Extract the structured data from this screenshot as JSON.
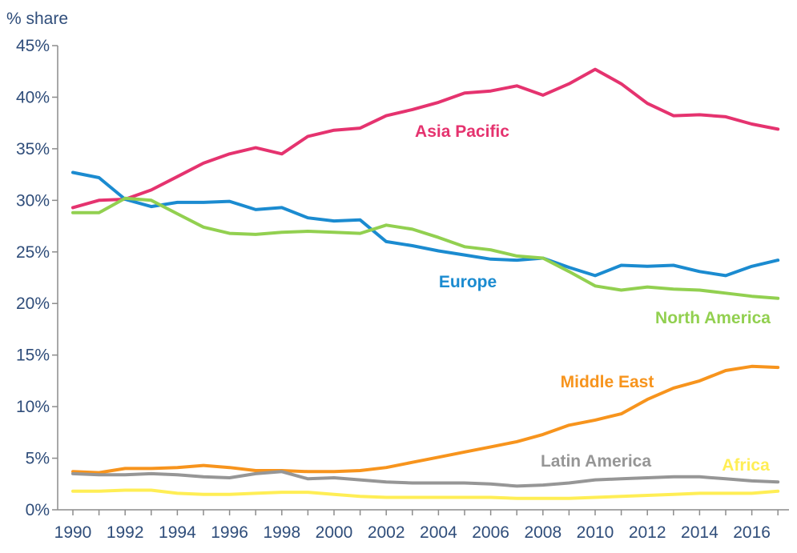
{
  "chart_data": {
    "type": "line",
    "ylabel": "% share",
    "xlabel": "",
    "ylim": [
      0,
      45
    ],
    "xlim": [
      1990,
      2017
    ],
    "grid": false,
    "legend": "inline labels",
    "x": [
      1990,
      1991,
      1992,
      1993,
      1994,
      1995,
      1996,
      1997,
      1998,
      1999,
      2000,
      2001,
      2002,
      2003,
      2004,
      2005,
      2006,
      2007,
      2008,
      2009,
      2010,
      2011,
      2012,
      2013,
      2014,
      2015,
      2016,
      2017
    ],
    "x_ticks": [
      "1990",
      "1992",
      "1994",
      "1996",
      "1998",
      "2000",
      "2002",
      "2004",
      "2006",
      "2008",
      "2010",
      "2012",
      "2014",
      "2016"
    ],
    "y_ticks": [
      "0%",
      "5%",
      "10%",
      "15%",
      "20%",
      "25%",
      "30%",
      "35%",
      "40%",
      "45%"
    ],
    "series": [
      {
        "name": "Asia Pacific",
        "color": "#e5336f",
        "values": [
          29.3,
          30.0,
          30.1,
          31.0,
          32.3,
          33.6,
          34.5,
          35.1,
          34.5,
          36.2,
          36.8,
          37.0,
          38.2,
          38.8,
          39.5,
          40.4,
          40.6,
          41.1,
          40.2,
          41.3,
          42.7,
          41.3,
          39.4,
          38.2,
          38.3,
          38.1,
          37.4,
          36.9
        ]
      },
      {
        "name": "Europe",
        "color": "#1b8bd0",
        "values": [
          32.7,
          32.2,
          30.1,
          29.4,
          29.8,
          29.8,
          29.9,
          29.1,
          29.3,
          28.3,
          28.0,
          28.1,
          26.0,
          25.6,
          25.1,
          24.7,
          24.3,
          24.2,
          24.4,
          23.5,
          22.7,
          23.7,
          23.6,
          23.7,
          23.1,
          22.7,
          23.6,
          24.2
        ]
      },
      {
        "name": "North America",
        "color": "#92d050",
        "values": [
          28.8,
          28.8,
          30.2,
          30.0,
          28.7,
          27.4,
          26.8,
          26.7,
          26.9,
          27.0,
          26.9,
          26.8,
          27.6,
          27.2,
          26.4,
          25.5,
          25.2,
          24.6,
          24.4,
          23.1,
          21.7,
          21.3,
          21.6,
          21.4,
          21.3,
          21.0,
          20.7,
          20.5
        ]
      },
      {
        "name": "Middle East",
        "color": "#f7941d",
        "values": [
          3.7,
          3.6,
          4.0,
          4.0,
          4.1,
          4.3,
          4.1,
          3.8,
          3.8,
          3.7,
          3.7,
          3.8,
          4.1,
          4.6,
          5.1,
          5.6,
          6.1,
          6.6,
          7.3,
          8.2,
          8.7,
          9.3,
          10.7,
          11.8,
          12.5,
          13.5,
          13.9,
          13.8
        ]
      },
      {
        "name": "Latin America",
        "color": "#969696",
        "values": [
          3.5,
          3.4,
          3.4,
          3.5,
          3.4,
          3.2,
          3.1,
          3.5,
          3.7,
          3.0,
          3.1,
          2.9,
          2.7,
          2.6,
          2.6,
          2.6,
          2.5,
          2.3,
          2.4,
          2.6,
          2.9,
          3.0,
          3.1,
          3.2,
          3.2,
          3.0,
          2.8,
          2.7
        ]
      },
      {
        "name": "Africa",
        "color": "#ffee55",
        "values": [
          1.8,
          1.8,
          1.9,
          1.9,
          1.6,
          1.5,
          1.5,
          1.6,
          1.7,
          1.7,
          1.5,
          1.3,
          1.2,
          1.2,
          1.2,
          1.2,
          1.2,
          1.1,
          1.1,
          1.1,
          1.2,
          1.3,
          1.4,
          1.5,
          1.6,
          1.6,
          1.6,
          1.8
        ]
      }
    ]
  }
}
